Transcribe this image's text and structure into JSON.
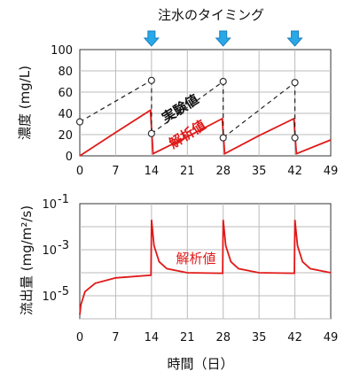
{
  "chart_data": [
    {
      "type": "line",
      "title": "注水のタイミング",
      "ylabel": "濃度 (mg/L)",
      "xlabel": "",
      "x_ticks": [
        0,
        7,
        14,
        21,
        28,
        35,
        42,
        49
      ],
      "y_ticks": [
        0,
        20,
        40,
        60,
        80,
        100
      ],
      "xlim": [
        0,
        49
      ],
      "ylim": [
        0,
        100
      ],
      "grid": true,
      "injection_days": [
        14,
        28,
        42
      ],
      "series": [
        {
          "name": "実験値",
          "style": "dashed-black-with-circles",
          "color": "#222222",
          "points": [
            [
              0,
              32
            ],
            [
              14,
              71
            ],
            [
              14,
              21
            ],
            [
              28,
              70
            ],
            [
              28,
              17
            ],
            [
              42,
              69
            ],
            [
              42,
              17
            ]
          ]
        },
        {
          "name": "解析値",
          "style": "solid",
          "color": "#e11919",
          "points": [
            [
              0,
              0
            ],
            [
              7,
              22
            ],
            [
              13.8,
              43
            ],
            [
              14.3,
              2
            ],
            [
              21,
              18
            ],
            [
              27.8,
              35
            ],
            [
              28.3,
              2
            ],
            [
              35,
              19
            ],
            [
              41.8,
              35
            ],
            [
              42.3,
              2
            ],
            [
              49,
              15
            ]
          ]
        }
      ]
    },
    {
      "type": "line",
      "ylabel": "流出量 (mg/m²/s)",
      "xlabel": "時間（日）",
      "x_ticks": [
        0,
        7,
        14,
        21,
        28,
        35,
        42,
        49
      ],
      "y_ticks": [
        "10-5",
        "10-3",
        "10-1"
      ],
      "xlim": [
        0,
        49
      ],
      "ylim": [
        1e-06,
        0.1
      ],
      "yscale": "log",
      "grid": true,
      "series": [
        {
          "name": "解析値",
          "style": "solid",
          "color": "#e11919",
          "points": [
            [
              0,
              1.5e-06
            ],
            [
              0.2,
              4e-06
            ],
            [
              1,
              1.5e-05
            ],
            [
              3,
              3.5e-05
            ],
            [
              7,
              6e-05
            ],
            [
              13.9,
              7.8e-05
            ],
            [
              14,
              0.02
            ],
            [
              14.5,
              0.0015
            ],
            [
              15.5,
              0.0003
            ],
            [
              17,
              0.00015
            ],
            [
              21,
              0.0001
            ],
            [
              27.9,
              9.5e-05
            ],
            [
              28,
              0.02
            ],
            [
              28.5,
              0.0015
            ],
            [
              29.5,
              0.0003
            ],
            [
              31,
              0.00015
            ],
            [
              35,
              0.0001
            ],
            [
              41.9,
              9.5e-05
            ],
            [
              42,
              0.02
            ],
            [
              42.5,
              0.0015
            ],
            [
              43.5,
              0.0003
            ],
            [
              45,
              0.00015
            ],
            [
              49,
              0.0001
            ]
          ]
        }
      ]
    }
  ]
}
